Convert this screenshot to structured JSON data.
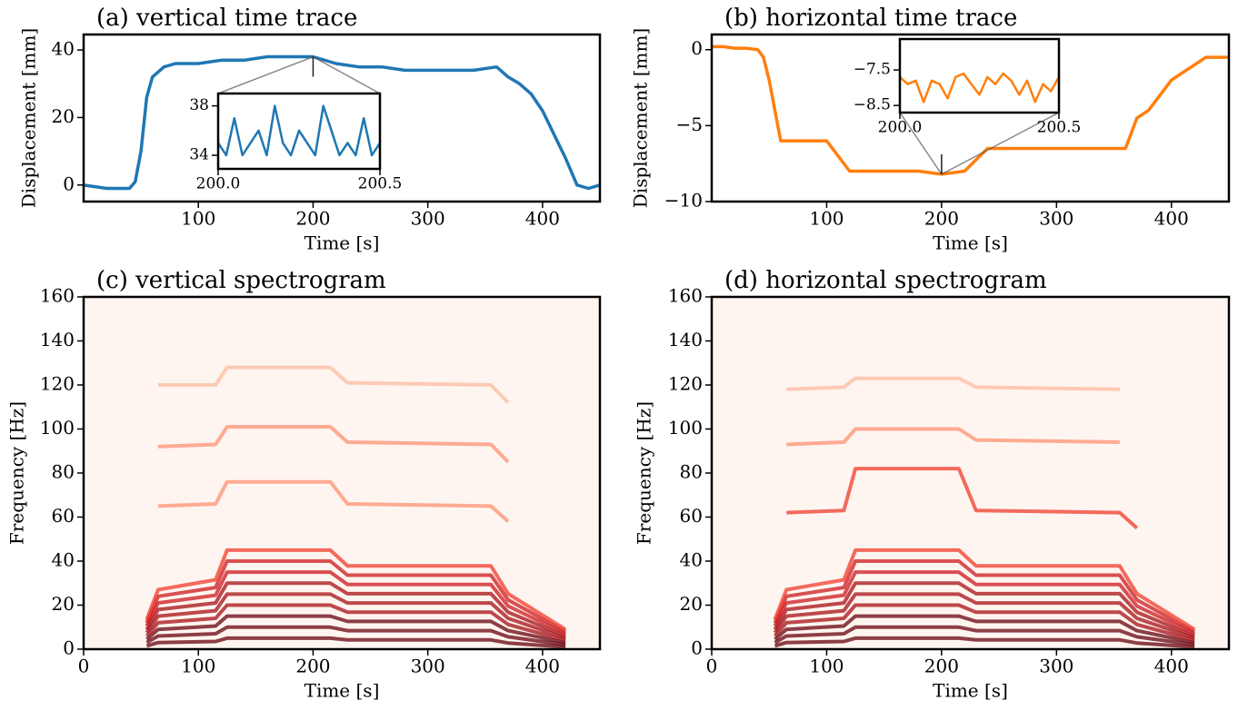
{
  "chart_data": [
    {
      "type": "line",
      "title": "(a) vertical time trace",
      "xlabel": "Time [s]",
      "ylabel": "Displacement [mm]",
      "color": "#1f77b4",
      "x": [
        0,
        10,
        20,
        30,
        40,
        45,
        50,
        55,
        60,
        70,
        80,
        100,
        120,
        140,
        160,
        180,
        200,
        220,
        240,
        260,
        280,
        300,
        320,
        340,
        360,
        370,
        380,
        390,
        400,
        410,
        420,
        430,
        440,
        450
      ],
      "values": [
        0,
        -0.5,
        -1,
        -1,
        -1,
        1,
        10,
        26,
        32,
        35,
        36,
        36,
        37,
        37,
        38,
        38,
        38,
        36,
        35,
        35,
        34,
        34,
        34,
        34,
        35,
        32,
        30,
        27,
        22,
        15,
        8,
        0,
        -1,
        0
      ],
      "xlim": [
        0,
        450
      ],
      "ylim": [
        -4.9,
        44.6
      ],
      "xticks": [
        100,
        200,
        300,
        400
      ],
      "yticks": [
        0,
        20,
        40
      ],
      "inset": {
        "x": [
          200,
          200.025,
          200.05,
          200.075,
          200.1,
          200.125,
          200.15,
          200.175,
          200.2,
          200.225,
          200.25,
          200.275,
          200.3,
          200.325,
          200.35,
          200.375,
          200.4,
          200.425,
          200.45,
          200.475,
          200.5
        ],
        "values": [
          35,
          34,
          37,
          34,
          35,
          36,
          34,
          38,
          35,
          34,
          36,
          35,
          34,
          38,
          36,
          34,
          35,
          34,
          37,
          34,
          35
        ],
        "xlim": [
          200,
          200.5
        ],
        "ylim": [
          32.9,
          39
        ],
        "xticks": [
          {
            "value": 200,
            "label": "200.0"
          },
          {
            "value": 200.5,
            "label": "200.5"
          }
        ],
        "yticks": [
          34,
          38
        ]
      }
    },
    {
      "type": "line",
      "title": "(b) horizontal time trace",
      "xlabel": "Time [s]",
      "ylabel": "Displacement [mm]",
      "color": "#ff7f0e",
      "x": [
        0,
        10,
        20,
        30,
        40,
        45,
        50,
        55,
        60,
        70,
        80,
        100,
        120,
        140,
        160,
        180,
        200,
        220,
        240,
        260,
        280,
        300,
        320,
        340,
        360,
        370,
        380,
        390,
        400,
        410,
        420,
        430,
        440,
        450
      ],
      "values": [
        0.2,
        0.2,
        0.1,
        0.1,
        0,
        -0.5,
        -2,
        -4,
        -6,
        -6,
        -6,
        -6,
        -8,
        -8,
        -8,
        -8,
        -8.2,
        -8,
        -6.5,
        -6.5,
        -6.5,
        -6.5,
        -6.5,
        -6.5,
        -6.5,
        -4.5,
        -4,
        -3,
        -2,
        -1.5,
        -1,
        -0.5,
        -0.5,
        -0.5
      ],
      "xlim": [
        0,
        450
      ],
      "ylim": [
        -10,
        1
      ],
      "xticks": [
        100,
        200,
        300,
        400
      ],
      "yticks": [
        {
          "value": -10,
          "label": "−10"
        },
        {
          "value": -5,
          "label": "−5"
        },
        0
      ],
      "inset": {
        "x": [
          200,
          200.025,
          200.05,
          200.075,
          200.1,
          200.125,
          200.15,
          200.175,
          200.2,
          200.225,
          200.25,
          200.275,
          200.3,
          200.325,
          200.35,
          200.375,
          200.4,
          200.425,
          200.45,
          200.475,
          200.5
        ],
        "values": [
          -7.7,
          -7.9,
          -7.8,
          -8.4,
          -7.8,
          -7.9,
          -8.3,
          -7.7,
          -7.6,
          -7.9,
          -8.2,
          -7.7,
          -7.9,
          -7.6,
          -7.8,
          -8.2,
          -7.8,
          -8.4,
          -7.9,
          -8.1,
          -7.7
        ],
        "xlim": [
          200,
          200.5
        ],
        "ylim": [
          -8.7,
          -6.63
        ],
        "xticks": [
          {
            "value": 200,
            "label": "200.0"
          },
          {
            "value": 200.5,
            "label": "200.5"
          }
        ],
        "yticks": [
          {
            "value": -7.5,
            "label": "−7.5"
          },
          {
            "value": -8.5,
            "label": "−8.5"
          }
        ]
      }
    },
    {
      "type": "spectrogram",
      "title": "(c) vertical spectrogram",
      "xlabel": "Time [s]",
      "ylabel": "Frequency [Hz]",
      "background": "#fff5f0",
      "x": [
        55,
        65,
        115,
        125,
        215,
        230,
        355,
        370,
        420
      ],
      "series": [
        {
          "color": "#67000d",
          "values": [
            1.5,
            3,
            3.5,
            5,
            5,
            4.2,
            4.2,
            2.8,
            1
          ]
        },
        {
          "color": "#67000d",
          "values": [
            3,
            6,
            7,
            10,
            10,
            8.4,
            8.4,
            5.6,
            2
          ]
        },
        {
          "color": "#67000d",
          "values": [
            4.5,
            9,
            10.5,
            15,
            15,
            12.6,
            12.6,
            8.4,
            3
          ]
        },
        {
          "color": "#a50f15",
          "values": [
            6,
            12,
            14,
            20,
            20,
            16.8,
            16.8,
            11.2,
            4
          ]
        },
        {
          "color": "#a50f15",
          "values": [
            7.5,
            15,
            17.5,
            25,
            25,
            21,
            21,
            14,
            5
          ]
        },
        {
          "color": "#a50f15",
          "values": [
            9,
            18,
            21,
            30,
            30,
            25.2,
            25.2,
            16.8,
            6
          ]
        },
        {
          "color": "#cb181d",
          "values": [
            10.5,
            21,
            24.5,
            35,
            35,
            29.4,
            29.4,
            19.6,
            7
          ]
        },
        {
          "color": "#cb181d",
          "values": [
            12,
            24,
            28,
            40,
            40,
            33.6,
            33.6,
            22.4,
            8
          ]
        },
        {
          "color": "#ef3b2c",
          "values": [
            13.5,
            27,
            31.5,
            45,
            45,
            37.8,
            37.8,
            25.2,
            9
          ]
        },
        {
          "color": "#fc9272",
          "values": [
            null,
            65,
            66,
            76,
            76,
            66,
            65,
            58,
            null
          ]
        },
        {
          "color": "#fc9272",
          "values": [
            null,
            92,
            93,
            101,
            101,
            94,
            93,
            85,
            null
          ]
        },
        {
          "color": "#fcbba1",
          "values": [
            null,
            120,
            120,
            128,
            128,
            121,
            120,
            112,
            null
          ]
        }
      ],
      "xlim": [
        0,
        450
      ],
      "ylim": [
        0,
        160
      ],
      "xticks": [
        0,
        100,
        200,
        300,
        400
      ],
      "yticks": [
        0,
        20,
        40,
        60,
        80,
        100,
        120,
        140,
        160
      ]
    },
    {
      "type": "spectrogram",
      "title": "(d) horizontal spectrogram",
      "xlabel": "Time [s]",
      "ylabel": "Frequency [Hz]",
      "background": "#fff5f0",
      "x": [
        55,
        65,
        115,
        125,
        215,
        230,
        355,
        370,
        420
      ],
      "series": [
        {
          "color": "#67000d",
          "values": [
            1.5,
            3,
            3.5,
            5,
            5,
            4.2,
            4.2,
            2.8,
            1
          ]
        },
        {
          "color": "#67000d",
          "values": [
            3,
            6,
            7,
            10,
            10,
            8.4,
            8.4,
            5.6,
            2
          ]
        },
        {
          "color": "#67000d",
          "values": [
            4.5,
            9,
            10.5,
            15,
            15,
            12.6,
            12.6,
            8.4,
            3
          ]
        },
        {
          "color": "#a50f15",
          "values": [
            6,
            12,
            14,
            20,
            20,
            16.8,
            16.8,
            11.2,
            4
          ]
        },
        {
          "color": "#a50f15",
          "values": [
            7.5,
            15,
            17.5,
            25,
            25,
            21,
            21,
            14,
            5
          ]
        },
        {
          "color": "#a50f15",
          "values": [
            9,
            18,
            21,
            30,
            30,
            25.2,
            25.2,
            16.8,
            6
          ]
        },
        {
          "color": "#cb181d",
          "values": [
            10.5,
            21,
            24.5,
            35,
            35,
            29.4,
            29.4,
            19.6,
            7
          ]
        },
        {
          "color": "#cb181d",
          "values": [
            12,
            24,
            28,
            40,
            40,
            33.6,
            33.6,
            22.4,
            8
          ]
        },
        {
          "color": "#ef3b2c",
          "values": [
            13.5,
            27,
            31.5,
            45,
            45,
            37.8,
            37.8,
            25.2,
            9
          ]
        },
        {
          "color": "#ef3b2c",
          "values": [
            null,
            62,
            63,
            82,
            82,
            63,
            62,
            55,
            null
          ]
        },
        {
          "color": "#fc9272",
          "values": [
            null,
            93,
            94,
            100,
            100,
            95,
            94,
            null,
            null
          ]
        },
        {
          "color": "#fcbba1",
          "values": [
            null,
            118,
            119,
            123,
            123,
            119,
            118,
            null,
            null
          ]
        }
      ],
      "xlim": [
        0,
        450
      ],
      "ylim": [
        0,
        160
      ],
      "xticks": [
        0,
        100,
        200,
        300,
        400
      ],
      "yticks": [
        0,
        20,
        40,
        60,
        80,
        100,
        120,
        140,
        160
      ]
    }
  ]
}
